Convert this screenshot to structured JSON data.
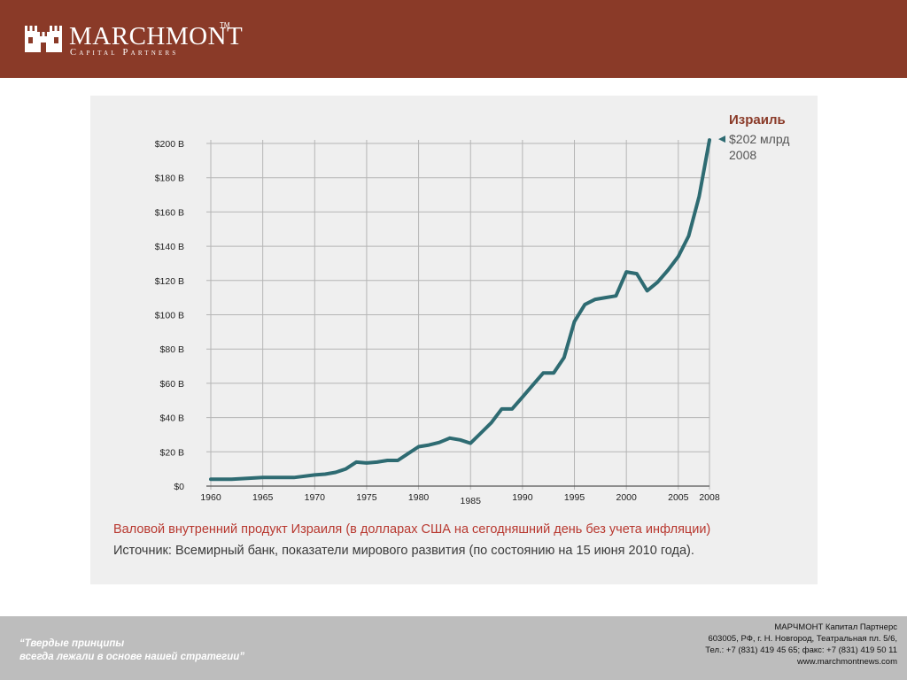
{
  "header": {
    "logo_name": "MARCHMONT",
    "logo_tm": "TM",
    "logo_sub": "Capital Partners"
  },
  "chart_data": {
    "type": "line",
    "title": "Валовой внутренний продукт Израиля (в долларах США на сегодняшний день без учета инфляции)",
    "source": "Источник: Всемирный банк, показатели мирового развития (по состоянию на 15 июня 2010 года).",
    "xlabel": "",
    "ylabel": "",
    "ylim": [
      0,
      200
    ],
    "grid": true,
    "x_ticks": [
      "1960",
      "1965",
      "1970",
      "1975",
      "1980",
      "1985",
      "1990",
      "1995",
      "2000",
      "2005",
      "2008"
    ],
    "y_ticks": [
      "$0",
      "$20 B",
      "$40 B",
      "$60 B",
      "$80 B",
      "$100 B",
      "$120 B",
      "$140 B",
      "$160 B",
      "$180 B",
      "$200 B"
    ],
    "series": [
      {
        "color": "#2e6b72",
        "x": [
          1960,
          1962,
          1965,
          1968,
          1970,
          1971,
          1972,
          1973,
          1974,
          1975,
          1976,
          1977,
          1978,
          1979,
          1980,
          1981,
          1982,
          1983,
          1984,
          1985,
          1986,
          1987,
          1988,
          1989,
          1990,
          1991,
          1992,
          1993,
          1994,
          1995,
          1996,
          1997,
          1998,
          1999,
          2000,
          2001,
          2002,
          2003,
          2004,
          2005,
          2006,
          2007,
          2008
        ],
        "values": [
          4,
          4,
          5,
          5,
          6.5,
          7,
          8,
          10,
          14,
          13.5,
          14,
          15,
          15,
          19,
          23,
          24,
          25.5,
          28,
          27,
          25,
          31,
          37,
          45,
          45,
          52,
          59,
          66,
          66,
          75,
          96,
          106,
          109,
          110,
          111,
          125,
          124,
          114,
          119,
          126,
          134,
          146,
          169,
          202
        ]
      }
    ],
    "annotation": {
      "country": "Израиль",
      "value": "$202 млрд",
      "year": "2008"
    }
  },
  "footer": {
    "slogan_line1": "“Твердые принципы",
    "slogan_line2": "всегда лежали в основе нашей стратегии”",
    "company": "МАРЧМОНТ Капитал Партнерс",
    "address": "603005, РФ, г. Н. Новгород, Театральная пл. 5/6,",
    "phone": "Тел.: +7 (831) 419 45 65; факс: +7 (831) 419 50 11",
    "website": "www.marchmontnews.com"
  },
  "colors": {
    "header": "#8a3a28",
    "line": "#2e6b72",
    "caption": "#b8382f",
    "footer": "#bdbdbd"
  }
}
